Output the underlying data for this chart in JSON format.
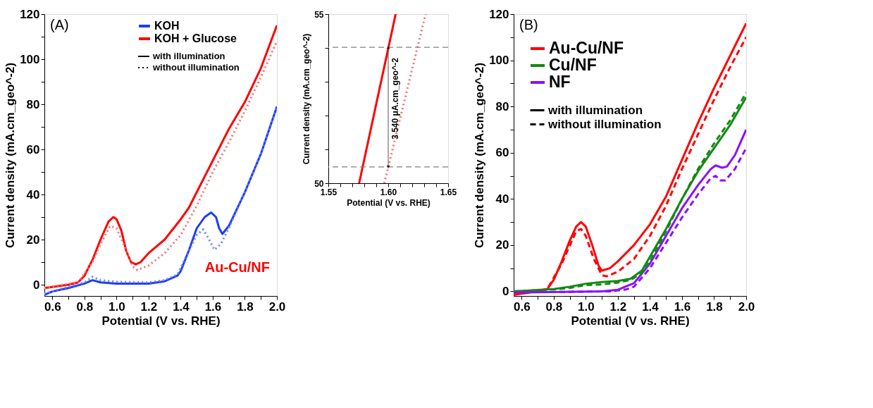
{
  "chart_data": [
    {
      "type": "line",
      "xlabel": "Potential (V vs. RHE)",
      "ylabel": "Current density (mA.cm_geo^-2)",
      "xlim": [
        0.55,
        2.0
      ],
      "ylim": [
        -5,
        120
      ],
      "xticks": [
        0.6,
        {
          "value": 0.7,
          "label": null
        },
        0.8,
        {
          "value": 0.9,
          "label": null
        },
        {
          "value": 1.0,
          "label": "1.0"
        },
        {
          "value": 1.1,
          "label": null
        },
        1.2,
        {
          "value": 1.3,
          "label": null
        },
        1.4,
        {
          "value": 1.5,
          "label": null
        },
        1.6,
        {
          "value": 1.7,
          "label": null
        },
        1.8,
        {
          "value": 1.9,
          "label": null
        },
        {
          "value": 2.0,
          "label": "2.0"
        }
      ],
      "yticks": [
        0,
        {
          "value": 10,
          "label": null
        },
        20,
        {
          "value": 30,
          "label": null
        },
        40,
        {
          "value": 50,
          "label": null
        },
        60,
        {
          "value": 70,
          "label": null
        },
        80,
        {
          "value": 90,
          "label": null
        },
        100,
        {
          "value": 110,
          "label": null
        },
        120
      ],
      "grid": false,
      "legend": "top right",
      "marker": "none",
      "series": [
        {
          "name": "KOH",
          "color": "#1f3cf5",
          "line_style": "solid",
          "x": [
            0.55,
            0.6,
            0.7,
            0.8,
            0.85,
            0.9,
            1.0,
            1.2,
            1.3,
            1.38,
            1.4,
            1.45,
            1.5,
            1.55,
            1.59,
            1.62,
            1.64,
            1.66,
            1.7,
            1.8,
            1.9,
            2.0
          ],
          "values": [
            -4.5,
            -3,
            -1.5,
            0.5,
            2,
            1,
            0.5,
            0.5,
            1.5,
            4,
            6,
            15,
            25,
            30,
            32,
            30,
            25,
            22.5,
            26,
            41,
            58,
            79
          ]
        },
        {
          "name": "KOH + Glucose",
          "color": "#ff0000",
          "line_style": "solid",
          "x": [
            0.55,
            0.6,
            0.7,
            0.76,
            0.8,
            0.85,
            0.9,
            0.95,
            0.98,
            1.0,
            1.03,
            1.06,
            1.09,
            1.12,
            1.15,
            1.2,
            1.3,
            1.4,
            1.45,
            1.5,
            1.55,
            1.6,
            1.65,
            1.7,
            1.8,
            1.9,
            2.0
          ],
          "values": [
            -1.5,
            -1,
            0,
            1,
            4,
            11,
            20,
            28,
            30,
            29,
            24,
            15,
            10,
            9,
            10,
            14,
            20,
            29,
            34,
            41,
            48,
            55,
            62,
            69,
            81,
            96,
            115
          ]
        },
        {
          "color": "#6680f0",
          "line_style": "dotted",
          "x": [
            0.55,
            0.7,
            0.8,
            0.85,
            0.9,
            1.0,
            1.2,
            1.3,
            1.38,
            1.45,
            1.5,
            1.54,
            1.57,
            1.61,
            1.65,
            1.7,
            1.8,
            1.9,
            2.0
          ],
          "values": [
            -4,
            -1,
            1,
            3.5,
            2,
            1.3,
            1,
            2,
            4.5,
            15,
            22,
            24.5,
            21,
            15.5,
            18,
            25,
            41,
            58,
            79
          ]
        },
        {
          "color": "#f07070",
          "line_style": "dotted",
          "x": [
            0.55,
            0.76,
            0.85,
            0.9,
            0.96,
            1.0,
            1.05,
            1.1,
            1.13,
            1.2,
            1.3,
            1.4,
            1.5,
            1.6,
            1.7,
            1.8,
            1.9,
            2.0
          ],
          "values": [
            -1.5,
            1,
            10,
            18,
            26,
            25,
            17,
            8,
            6.5,
            8.5,
            14,
            22,
            35,
            50,
            63,
            77,
            92,
            108
          ]
        }
      ],
      "annotations": [
        "(A)",
        "Au-Cu/NF",
        "with illumination",
        "without illumination"
      ]
    },
    {
      "type": "line",
      "xlabel": "Potential (V vs. RHE)",
      "ylabel": "Current density (mA.cm_geo^-2)",
      "xlim": [
        1.55,
        1.65
      ],
      "ylim": [
        50,
        55
      ],
      "xticks": [
        1.55,
        {
          "value": 1.56,
          "label": null
        },
        {
          "value": 1.57,
          "label": null
        },
        {
          "value": 1.58,
          "label": null
        },
        {
          "value": 1.59,
          "label": null
        },
        {
          "value": 1.6,
          "label": "1.60"
        },
        {
          "value": 1.61,
          "label": null
        },
        {
          "value": 1.62,
          "label": null
        },
        {
          "value": 1.63,
          "label": null
        },
        {
          "value": 1.64,
          "label": null
        },
        1.65
      ],
      "yticks": [
        50,
        {
          "value": 51,
          "label": null
        },
        {
          "value": 52,
          "label": null
        },
        {
          "value": 53,
          "label": null
        },
        {
          "value": 54,
          "label": null
        },
        55
      ],
      "grid": false,
      "marker": "none",
      "series": [
        {
          "color": "#ff0000",
          "line_style": "solid",
          "x": [
            1.5757,
            1.6062
          ],
          "values": [
            50,
            55
          ]
        },
        {
          "color": "#f07070",
          "line_style": "dotted",
          "x": [
            1.5967,
            1.6312
          ],
          "values": [
            50,
            55
          ]
        }
      ],
      "ref_lines": [
        {
          "axis": "y",
          "value": 54.02,
          "color": "#808080",
          "line_style": "dashed"
        },
        {
          "axis": "y",
          "value": 50.48,
          "color": "#808080",
          "line_style": "dashed"
        }
      ],
      "annotations": [
        "3 540 μA.cm_geo^-2"
      ]
    },
    {
      "type": "line",
      "xlabel": "Potential (V vs. RHE)",
      "ylabel": "Current density (mA.cm_geo^-2)",
      "xlim": [
        0.55,
        2.0
      ],
      "ylim": [
        -2,
        120
      ],
      "xticks": [
        0.6,
        {
          "value": 0.7,
          "label": null
        },
        0.8,
        {
          "value": 0.9,
          "label": null
        },
        {
          "value": 1.0,
          "label": "1.0"
        },
        {
          "value": 1.1,
          "label": null
        },
        1.2,
        {
          "value": 1.3,
          "label": null
        },
        1.4,
        {
          "value": 1.5,
          "label": null
        },
        1.6,
        {
          "value": 1.7,
          "label": null
        },
        1.8,
        {
          "value": 1.9,
          "label": null
        },
        {
          "value": 2.0,
          "label": "2.0"
        }
      ],
      "yticks": [
        0,
        {
          "value": 10,
          "label": null
        },
        20,
        {
          "value": 30,
          "label": null
        },
        40,
        {
          "value": 50,
          "label": null
        },
        60,
        {
          "value": 70,
          "label": null
        },
        80,
        {
          "value": 90,
          "label": null
        },
        100,
        {
          "value": 110,
          "label": null
        },
        120
      ],
      "grid": false,
      "legend": "top left",
      "marker": "none",
      "series": [
        {
          "name": "Au-Cu/NF",
          "color": "#ff0000",
          "line_style": "solid",
          "x": [
            0.55,
            0.7,
            0.76,
            0.8,
            0.85,
            0.9,
            0.94,
            0.97,
            1.0,
            1.04,
            1.08,
            1.1,
            1.15,
            1.2,
            1.3,
            1.4,
            1.5,
            1.6,
            1.7,
            1.8,
            1.9,
            2.0
          ],
          "values": [
            -1.5,
            0,
            1,
            5,
            13,
            22,
            28,
            30,
            28,
            20,
            11,
            9,
            10,
            13,
            20,
            29,
            41,
            57,
            73,
            88,
            102,
            116
          ]
        },
        {
          "name": "Cu/NF",
          "color": "#128a12",
          "line_style": "solid",
          "x": [
            0.55,
            0.8,
            0.9,
            1.0,
            1.1,
            1.2,
            1.28,
            1.35,
            1.4,
            1.5,
            1.6,
            1.7,
            1.8,
            1.9,
            2.0
          ],
          "values": [
            0,
            1,
            2,
            3.3,
            4,
            4.5,
            5.5,
            9,
            15,
            27,
            40,
            52,
            62,
            72,
            84
          ]
        },
        {
          "name": "NF",
          "color": "#8b10ff",
          "line_style": "solid",
          "x": [
            0.55,
            1.1,
            1.2,
            1.3,
            1.4,
            1.5,
            1.6,
            1.7,
            1.78,
            1.81,
            1.85,
            1.88,
            1.93,
            2.0
          ],
          "values": [
            -0.5,
            0,
            0.7,
            3.5,
            12,
            24,
            36,
            46,
            53,
            54.5,
            53.5,
            54,
            59,
            70
          ]
        },
        {
          "color": "#ff0000",
          "line_style": "dashed",
          "x": [
            0.55,
            0.76,
            0.85,
            0.94,
            0.97,
            1.0,
            1.05,
            1.1,
            1.13,
            1.2,
            1.3,
            1.4,
            1.5,
            1.6,
            1.7,
            1.8,
            1.9,
            2.0
          ],
          "values": [
            -1.5,
            1,
            12,
            26,
            27,
            24,
            14,
            7,
            6.5,
            8.5,
            14,
            24,
            37,
            53,
            68,
            83,
            97,
            110
          ]
        },
        {
          "color": "#128a12",
          "line_style": "dashed",
          "x": [
            0.55,
            0.8,
            0.9,
            1.0,
            1.1,
            1.2,
            1.28,
            1.35,
            1.4,
            1.5,
            1.6,
            1.7,
            1.8,
            1.9,
            2.0
          ],
          "values": [
            0,
            0.8,
            1.5,
            2.7,
            3,
            3.8,
            5,
            8,
            13,
            26,
            40,
            53,
            64,
            74,
            86
          ]
        },
        {
          "color": "#8b10ff",
          "line_style": "dashed",
          "x": [
            0.55,
            1.15,
            1.25,
            1.3,
            1.4,
            1.5,
            1.6,
            1.7,
            1.78,
            1.81,
            1.84,
            1.87,
            1.93,
            2.0
          ],
          "values": [
            -0.5,
            0,
            0.8,
            2,
            10,
            21,
            32,
            42,
            49,
            50,
            48,
            48,
            53,
            62
          ]
        }
      ],
      "annotations": [
        "(B)",
        "with illumination",
        "without illumination"
      ]
    }
  ]
}
